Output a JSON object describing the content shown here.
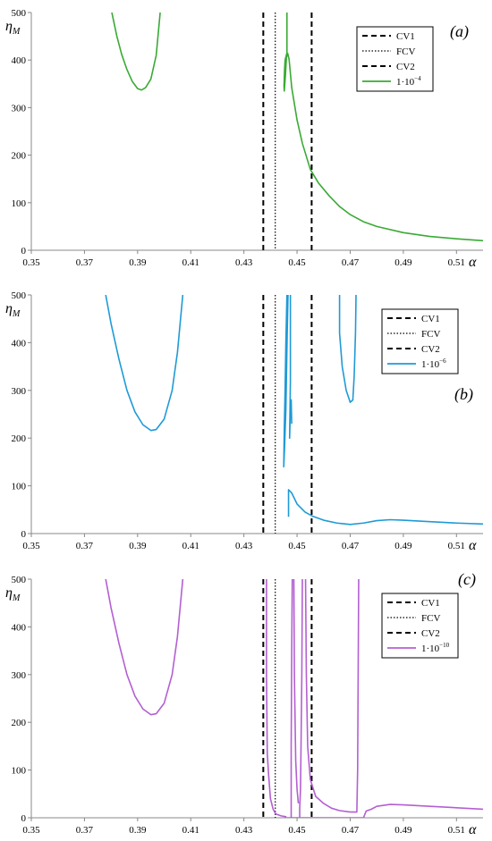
{
  "chart_data": [
    {
      "type": "line",
      "panel_label": "(a)",
      "ylabel": "η",
      "ylabel_sub": "M",
      "xlabel": "α",
      "xlim": [
        0.35,
        0.52
      ],
      "ylim": [
        0,
        500
      ],
      "xticks": [
        "0.35",
        "0.37",
        "0.39",
        "0.41",
        "0.43",
        "0.45",
        "0.47",
        "0.49",
        "0.51"
      ],
      "yticks": [
        "0",
        "100",
        "200",
        "300",
        "400",
        "500"
      ],
      "grid": false,
      "legend_position": "top-right",
      "vlines": [
        {
          "name": "CV1",
          "x": 0.4373,
          "style": "dashed",
          "color": "#000000"
        },
        {
          "name": "FCV",
          "x": 0.4418,
          "style": "dotted",
          "color": "#000000"
        },
        {
          "name": "CV2",
          "x": 0.4555,
          "style": "dashed",
          "color": "#000000"
        }
      ],
      "series": [
        {
          "name": "1·10",
          "name_exp": "−4",
          "color": "#3aaa35",
          "segments": [
            [
              [
                0.3803,
                500
              ],
              [
                0.3822,
                450
              ],
              [
                0.384,
                412
              ],
              [
                0.386,
                380
              ],
              [
                0.388,
                355
              ],
              [
                0.39,
                340
              ],
              [
                0.3915,
                337
              ],
              [
                0.393,
                342
              ],
              [
                0.395,
                360
              ],
              [
                0.397,
                410
              ],
              [
                0.3985,
                500
              ]
            ],
            [
              [
                0.4462,
                500
              ],
              [
                0.4462,
                415
              ],
              [
                0.4455,
                400
              ],
              [
                0.4453,
                380
              ],
              [
                0.4451,
                345
              ],
              [
                0.4452,
                335
              ],
              [
                0.4456,
                365
              ],
              [
                0.446,
                405
              ],
              [
                0.4465,
                414
              ],
              [
                0.447,
                402
              ],
              [
                0.448,
                342
              ],
              [
                0.45,
                274
              ],
              [
                0.452,
                225
              ],
              [
                0.455,
                170
              ],
              [
                0.458,
                142
              ],
              [
                0.462,
                115
              ],
              [
                0.466,
                92
              ],
              [
                0.47,
                75
              ],
              [
                0.475,
                60
              ],
              [
                0.48,
                50
              ],
              [
                0.49,
                37
              ],
              [
                0.5,
                29
              ],
              [
                0.51,
                24
              ],
              [
                0.52,
                20
              ]
            ]
          ]
        }
      ]
    },
    {
      "type": "line",
      "panel_label": "(b)",
      "ylabel": "η",
      "ylabel_sub": "M",
      "xlabel": "α",
      "xlim": [
        0.35,
        0.52
      ],
      "ylim": [
        0,
        500
      ],
      "xticks": [
        "0.35",
        "0.37",
        "0.39",
        "0.41",
        "0.43",
        "0.45",
        "0.47",
        "0.49",
        "0.51"
      ],
      "yticks": [
        "0",
        "100",
        "200",
        "300",
        "400",
        "500"
      ],
      "grid": false,
      "legend_position": "top-right",
      "vlines": [
        {
          "name": "CV1",
          "x": 0.4373,
          "style": "dashed",
          "color": "#000000"
        },
        {
          "name": "FCV",
          "x": 0.4418,
          "style": "dotted",
          "color": "#000000"
        },
        {
          "name": "CV2",
          "x": 0.4555,
          "style": "dashed",
          "color": "#000000"
        }
      ],
      "series": [
        {
          "name": "1·10",
          "name_exp": "−6",
          "color": "#1f9ad6",
          "segments": [
            [
              [
                0.378,
                500
              ],
              [
                0.38,
                440
              ],
              [
                0.383,
                365
              ],
              [
                0.386,
                300
              ],
              [
                0.389,
                255
              ],
              [
                0.392,
                228
              ],
              [
                0.395,
                216
              ],
              [
                0.397,
                218
              ],
              [
                0.4,
                240
              ],
              [
                0.403,
                300
              ],
              [
                0.405,
                380
              ],
              [
                0.407,
                500
              ]
            ],
            [
              [
                0.4462,
                500
              ],
              [
                0.4458,
                400
              ],
              [
                0.4455,
                300
              ],
              [
                0.4452,
                220
              ],
              [
                0.445,
                140
              ],
              [
                0.4453,
                180
              ],
              [
                0.4458,
                260
              ],
              [
                0.4463,
                420
              ],
              [
                0.4466,
                500
              ]
            ],
            [
              [
                0.4475,
                500
              ],
              [
                0.4475,
                320
              ],
              [
                0.4473,
                240
              ],
              [
                0.4472,
                200
              ],
              [
                0.4475,
                260
              ],
              [
                0.4478,
                280
              ],
              [
                0.448,
                230
              ]
            ],
            [
              [
                0.4468,
                35
              ],
              [
                0.4468,
                92
              ],
              [
                0.448,
                85
              ],
              [
                0.45,
                62
              ],
              [
                0.453,
                45
              ],
              [
                0.456,
                36
              ],
              [
                0.46,
                28
              ],
              [
                0.465,
                22
              ],
              [
                0.47,
                19
              ],
              [
                0.475,
                22
              ],
              [
                0.48,
                27
              ],
              [
                0.485,
                29
              ],
              [
                0.49,
                28
              ],
              [
                0.5,
                25
              ],
              [
                0.51,
                22
              ],
              [
                0.52,
                20
              ]
            ],
            [
              [
                0.466,
                500
              ],
              [
                0.466,
                420
              ],
              [
                0.467,
                350
              ],
              [
                0.4685,
                300
              ],
              [
                0.47,
                275
              ],
              [
                0.471,
                280
              ],
              [
                0.4715,
                330
              ],
              [
                0.472,
                420
              ],
              [
                0.4722,
                500
              ]
            ]
          ]
        }
      ]
    },
    {
      "type": "line",
      "panel_label": "(c)",
      "ylabel": "η",
      "ylabel_sub": "M",
      "xlabel": "α",
      "xlim": [
        0.35,
        0.52
      ],
      "ylim": [
        0,
        500
      ],
      "xticks": [
        "0.35",
        "0.37",
        "0.39",
        "0.41",
        "0.43",
        "0.45",
        "0.47",
        "0.49",
        "0.51"
      ],
      "yticks": [
        "0",
        "100",
        "200",
        "300",
        "400",
        "500"
      ],
      "grid": false,
      "legend_position": "top-right",
      "vlines": [
        {
          "name": "CV1",
          "x": 0.4373,
          "style": "dashed",
          "color": "#000000"
        },
        {
          "name": "FCV",
          "x": 0.4418,
          "style": "dotted",
          "color": "#000000"
        },
        {
          "name": "CV2",
          "x": 0.4555,
          "style": "dashed",
          "color": "#000000"
        }
      ],
      "series": [
        {
          "name": "1·10",
          "name_exp": "−10",
          "color": "#b45fd2",
          "segments": [
            [
              [
                0.378,
                500
              ],
              [
                0.38,
                440
              ],
              [
                0.383,
                365
              ],
              [
                0.386,
                300
              ],
              [
                0.389,
                255
              ],
              [
                0.392,
                228
              ],
              [
                0.395,
                216
              ],
              [
                0.397,
                218
              ],
              [
                0.4,
                240
              ],
              [
                0.403,
                300
              ],
              [
                0.405,
                380
              ],
              [
                0.407,
                500
              ]
            ],
            [
              [
                0.4385,
                500
              ],
              [
                0.4385,
                300
              ],
              [
                0.4388,
                135
              ],
              [
                0.4393,
                90
              ],
              [
                0.44,
                40
              ],
              [
                0.441,
                18
              ],
              [
                0.442,
                8
              ],
              [
                0.444,
                4
              ],
              [
                0.446,
                2
              ]
            ],
            [
              [
                0.4478,
                0
              ],
              [
                0.4478,
                150
              ],
              [
                0.448,
                350
              ],
              [
                0.4482,
                500
              ]
            ],
            [
              [
                0.4488,
                500
              ],
              [
                0.449,
                300
              ],
              [
                0.4495,
                120
              ],
              [
                0.45,
                60
              ],
              [
                0.4505,
                30
              ]
            ],
            [
              [
                0.452,
                500
              ],
              [
                0.4518,
                300
              ],
              [
                0.4515,
                150
              ],
              [
                0.4513,
                60
              ],
              [
                0.451,
                20
              ],
              [
                0.451,
                0
              ]
            ],
            [
              [
                0.4532,
                500
              ],
              [
                0.4535,
                300
              ],
              [
                0.454,
                150
              ],
              [
                0.455,
                80
              ],
              [
                0.457,
                45
              ],
              [
                0.46,
                30
              ],
              [
                0.463,
                20
              ],
              [
                0.466,
                15
              ],
              [
                0.47,
                12
              ],
              [
                0.4725,
                12
              ],
              [
                0.4728,
                100
              ],
              [
                0.473,
                300
              ],
              [
                0.4732,
                500
              ]
            ],
            [
              [
                0.446,
                0
              ],
              [
                0.46,
                0
              ],
              [
                0.475,
                0
              ]
            ],
            [
              [
                0.475,
                0
              ],
              [
                0.476,
                14
              ],
              [
                0.478,
                18
              ],
              [
                0.48,
                24
              ],
              [
                0.485,
                28
              ],
              [
                0.49,
                27
              ],
              [
                0.5,
                24
              ],
              [
                0.51,
                21
              ],
              [
                0.52,
                18
              ]
            ]
          ]
        }
      ]
    }
  ],
  "legend_vline_labels": [
    "CV1",
    "FCV",
    "CV2"
  ]
}
